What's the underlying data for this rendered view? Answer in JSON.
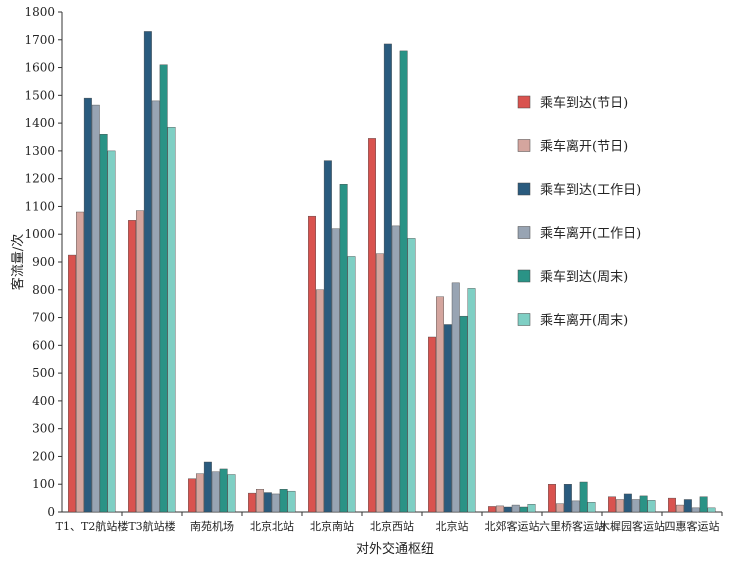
{
  "chart_data": {
    "type": "bar",
    "xlabel": "对外交通枢纽",
    "ylabel": "客流量/次",
    "ylim": [
      0,
      1800
    ],
    "yticks": [
      0,
      100,
      200,
      300,
      400,
      500,
      600,
      700,
      800,
      900,
      1000,
      1100,
      1200,
      1300,
      1400,
      1500,
      1600,
      1700,
      1800
    ],
    "grid": false,
    "legend_position": "right",
    "categories": [
      "T1、T2航站楼",
      "T3航站楼",
      "南苑机场",
      "北京北站",
      "北京南站",
      "北京西站",
      "北京站",
      "北郊客运站",
      "六里桥客运站",
      "木樨园客运站",
      "四惠客运站"
    ],
    "series": [
      {
        "name": "乘车到达(节日)",
        "color": "#d9534f",
        "values": [
          925,
          1050,
          120,
          68,
          1065,
          1345,
          630,
          20,
          100,
          55,
          50
        ]
      },
      {
        "name": "乘车离开(节日)",
        "color": "#d4a59e",
        "values": [
          1080,
          1085,
          138,
          82,
          800,
          930,
          775,
          22,
          30,
          45,
          25
        ]
      },
      {
        "name": "乘车到达(工作日)",
        "color": "#2a5b7e",
        "values": [
          1490,
          1730,
          180,
          70,
          1265,
          1685,
          675,
          18,
          100,
          65,
          45
        ]
      },
      {
        "name": "乘车离开(工作日)",
        "color": "#98a4b3",
        "values": [
          1465,
          1480,
          145,
          65,
          1020,
          1030,
          825,
          25,
          40,
          45,
          15
        ]
      },
      {
        "name": "乘车到达(周末)",
        "color": "#2a9386",
        "values": [
          1360,
          1610,
          155,
          82,
          1180,
          1660,
          705,
          18,
          108,
          58,
          55
        ]
      },
      {
        "name": "乘车离开(周末)",
        "color": "#7fcfc4",
        "values": [
          1300,
          1385,
          135,
          75,
          920,
          985,
          805,
          28,
          35,
          42,
          15
        ]
      }
    ]
  }
}
